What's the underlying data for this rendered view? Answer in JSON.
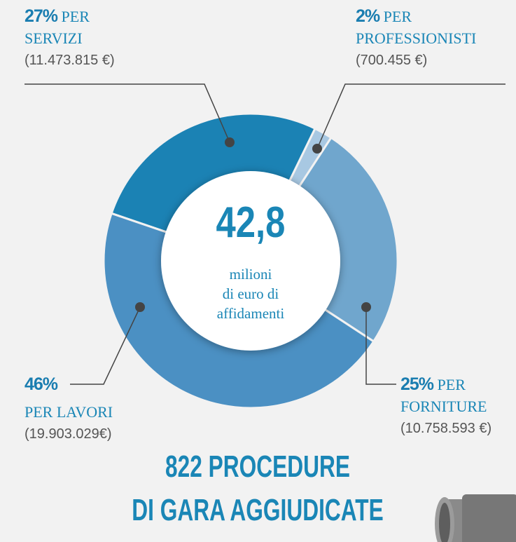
{
  "chart_data": {
    "type": "donut",
    "categories": [
      "PER SERVIZI",
      "PER PROFESSIONISTI",
      "PER FORNITURE",
      "PER LAVORI"
    ],
    "values": [
      27,
      2,
      25,
      46
    ],
    "value_labels": [
      "27%",
      "2%",
      "25%",
      "46%"
    ],
    "amounts": [
      "(11.473.815 €)",
      "(700.455 €)",
      "(10.758.593 €)",
      "(19.903.029€)"
    ],
    "colors": [
      "#1b82b4",
      "#a8c8e2",
      "#70a6cd",
      "#4b90c3"
    ],
    "center": {
      "value": "42,8",
      "text": [
        "milioni",
        "di euro di",
        "affidamenti"
      ]
    },
    "footer": [
      "822 PROCEDURE",
      "DI GARA AGGIUDICATE"
    ]
  }
}
